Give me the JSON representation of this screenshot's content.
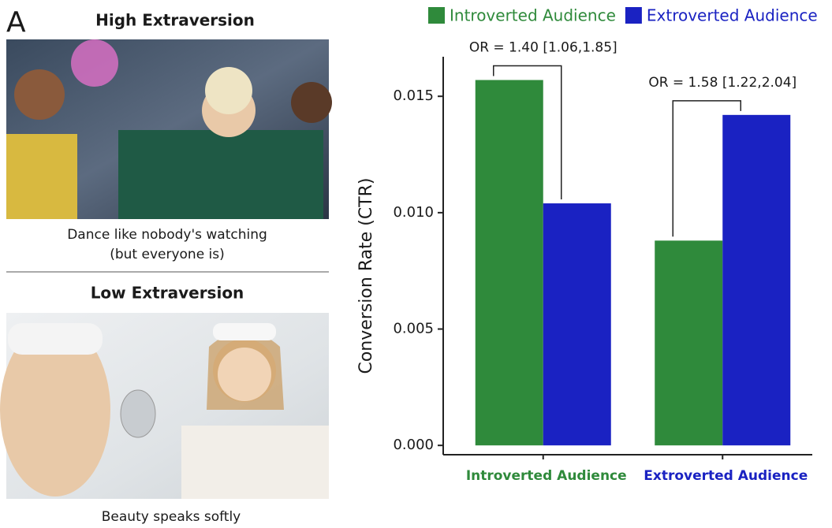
{
  "panel_label": "A",
  "ads": [
    {
      "title": "High Extraversion",
      "caption": [
        "Dance like nobody's watching",
        "(but everyone is)"
      ]
    },
    {
      "title": "Low Extraversion",
      "caption": [
        "Beauty speaks softly"
      ]
    }
  ],
  "chart_data": {
    "type": "bar",
    "y_label": "Conversion Rate (CTR)",
    "categories": [
      "Introverted Audience",
      "Extroverted Audience"
    ],
    "series": [
      {
        "name": "Introverted Audience",
        "color": "#2f8a3b",
        "values": [
          0.0157,
          0.0088
        ]
      },
      {
        "name": "Extroverted Audience",
        "color": "#1a22c2",
        "values": [
          0.0104,
          0.0142
        ]
      }
    ],
    "annotations": [
      "OR = 1.40 [1.06,1.85]",
      "OR = 1.58 [1.22,2.04]"
    ],
    "ylim": [
      -0.0004,
      0.0167
    ],
    "yticks": [
      {
        "value": 0,
        "label": "0.000"
      },
      0.005,
      {
        "value": 0.01,
        "label": "0.010"
      },
      0.015
    ],
    "legend": "top"
  }
}
